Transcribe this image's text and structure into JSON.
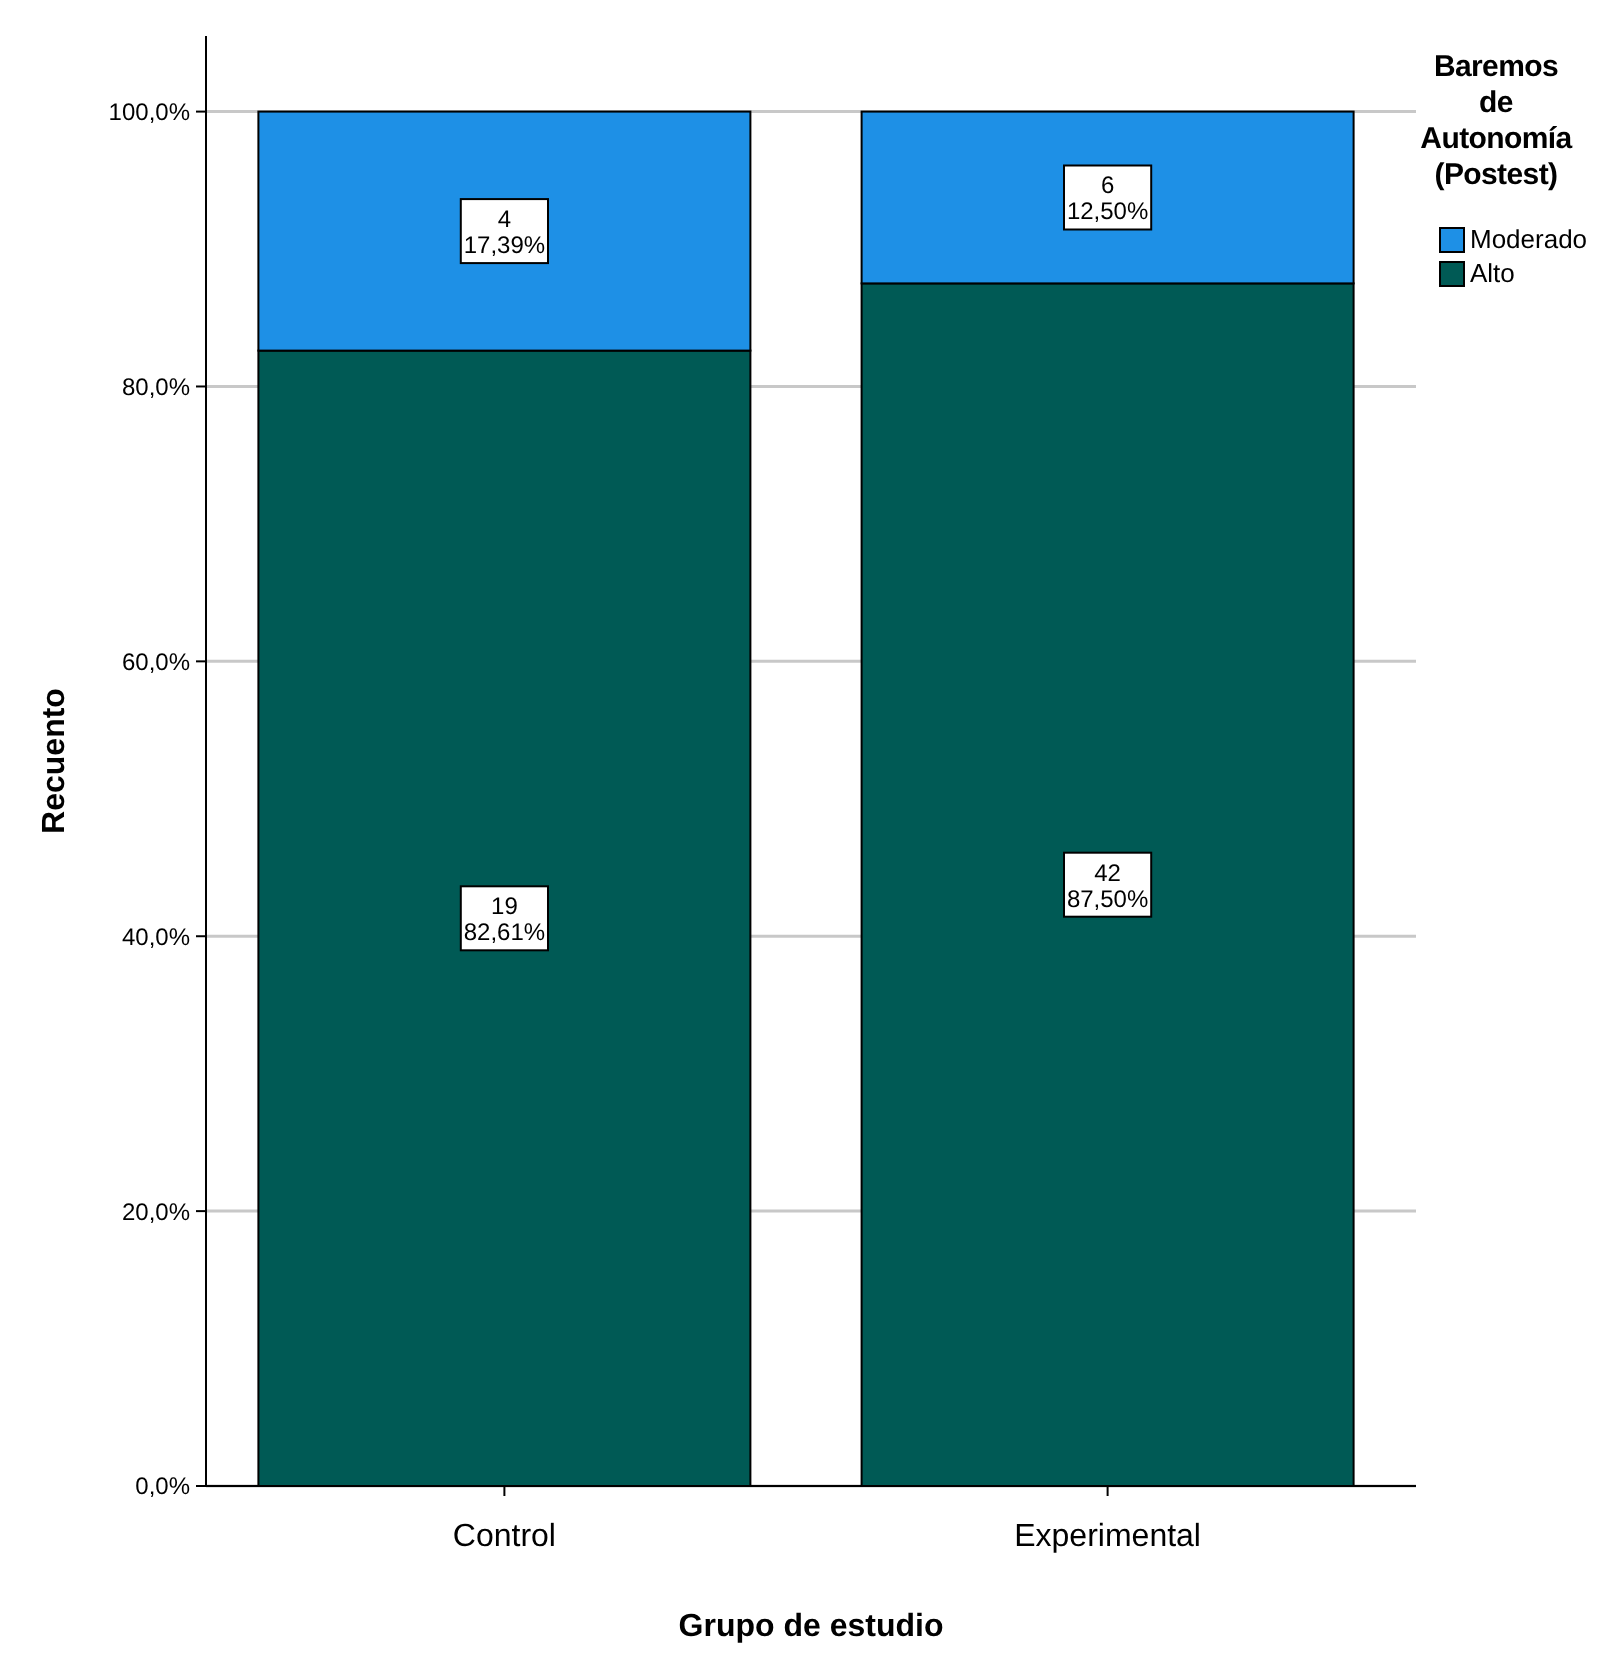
{
  "chart_data": {
    "type": "bar",
    "stacked": true,
    "xlabel": "Grupo de estudio",
    "ylabel": "Recuento",
    "legend_title": "Baremos de Autonomía (Postest)",
    "categories": [
      "Control",
      "Experimental"
    ],
    "series": [
      {
        "name": "Alto",
        "color": "#005a55",
        "values": [
          82.61,
          87.5
        ],
        "value_labels": [
          "19\n82,61%",
          "42\n87,50%"
        ]
      },
      {
        "name": "Moderado",
        "color": "#1e90e6",
        "values": [
          17.39,
          12.5
        ],
        "value_labels": [
          "4\n17,39%",
          "6\n12,50%"
        ]
      }
    ],
    "ylim": [
      0,
      105.5
    ],
    "yticks": [
      {
        "value": 0,
        "label": "0,0%"
      },
      {
        "value": 20,
        "label": "20,0%"
      },
      {
        "value": 40,
        "label": "40,0%"
      },
      {
        "value": 60,
        "label": "60,0%"
      },
      {
        "value": 80,
        "label": "80,0%"
      },
      {
        "value": 100,
        "label": "100,0%"
      }
    ],
    "grid": "y",
    "legend": "top right"
  }
}
